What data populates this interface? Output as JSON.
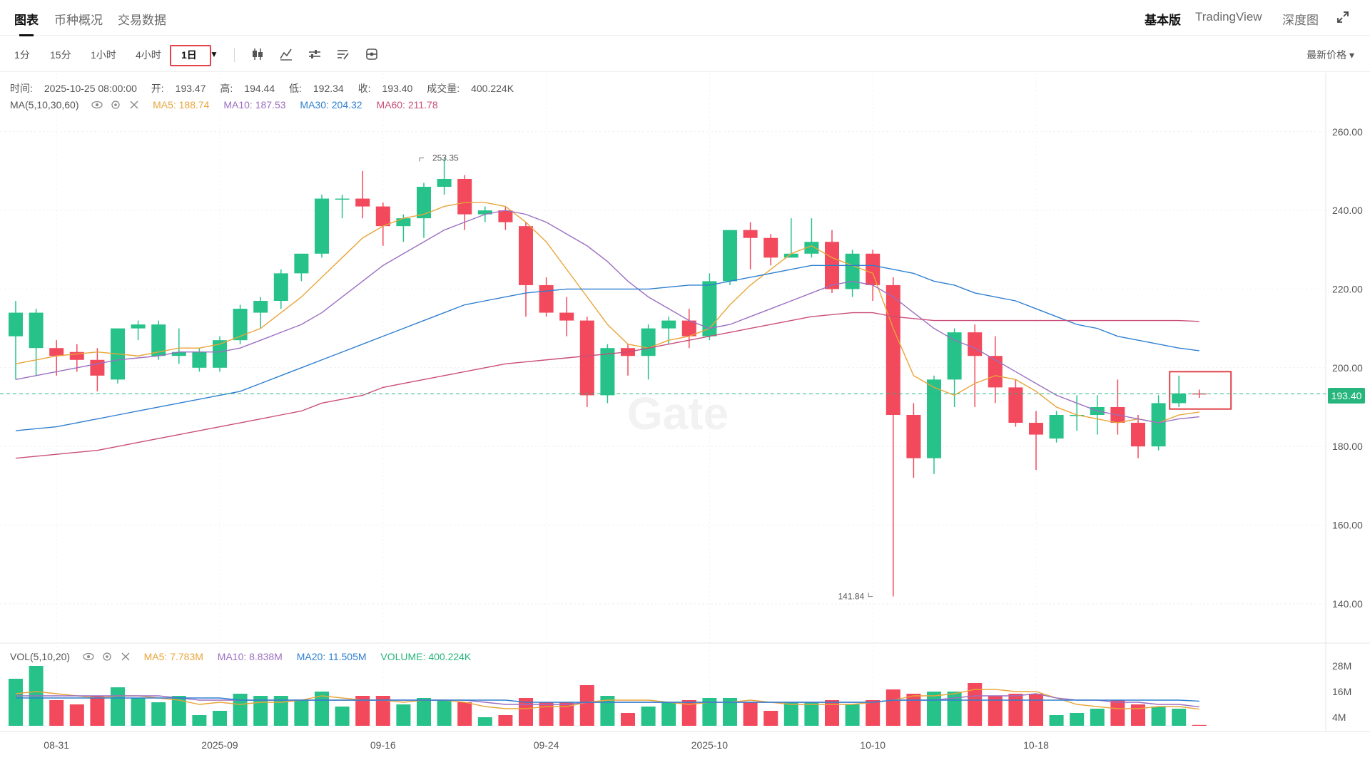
{
  "tabs": [
    {
      "label": "图表",
      "active": true
    },
    {
      "label": "币种概况",
      "active": false
    },
    {
      "label": "交易数据",
      "active": false
    }
  ],
  "right_tabs": [
    {
      "label": "基本版",
      "active": true
    },
    {
      "label": "TradingView",
      "active": false
    },
    {
      "label": "深度图",
      "active": false
    }
  ],
  "intervals": [
    "1分",
    "15分",
    "1小时",
    "4小时",
    "1日"
  ],
  "active_interval": "1日",
  "price_type": "最新价格",
  "ohlc": {
    "time_label": "时间:",
    "time": "2025-10-25 08:00:00",
    "open_label": "开:",
    "open": "193.47",
    "high_label": "高:",
    "high": "194.44",
    "low_label": "低:",
    "low": "192.34",
    "close_label": "收:",
    "close": "193.40",
    "volume_label": "成交量:",
    "volume": "400.224K"
  },
  "ma_legend": {
    "name": "MA(5,10,30,60)",
    "ma5": "MA5: 188.74",
    "ma10": "MA10: 187.53",
    "ma30": "MA30: 204.32",
    "ma60": "MA60: 211.78"
  },
  "vol_legend": {
    "name": "VOL(5,10,20)",
    "ma5": "MA5: 7.783M",
    "ma10": "MA10: 8.838M",
    "ma20": "MA20: 11.505M",
    "volume": "VOLUME: 400.224K"
  },
  "current_price": "193.40",
  "watermark": "Gate",
  "colors": {
    "up": "#26c28a",
    "down": "#f2495c",
    "ma5": "#e8a53a",
    "ma10": "#9b6fc1",
    "ma30": "#2f7fd0",
    "ma60": "#c94d7a",
    "current": "#26b57c"
  },
  "chart_data": {
    "type": "candlestick",
    "title": "",
    "price_range": [
      130,
      275
    ],
    "price_ticks": [
      "260.00",
      "240.00",
      "220.00",
      "200.00",
      "180.00",
      "160.00",
      "140.00"
    ],
    "price_tick_values": [
      260,
      240,
      220,
      200,
      180,
      160,
      140
    ],
    "volume_ticks": [
      "28M",
      "16M",
      "4M"
    ],
    "volume_tick_values": [
      28,
      16,
      4
    ],
    "volume_range": [
      0,
      32
    ],
    "date_labels": [
      {
        "index": 2,
        "label": "08-31"
      },
      {
        "index": 10,
        "label": "2025-09"
      },
      {
        "index": 18,
        "label": "09-16"
      },
      {
        "index": 26,
        "label": "09-24"
      },
      {
        "index": 34,
        "label": "2025-10"
      },
      {
        "index": 42,
        "label": "10-10"
      },
      {
        "index": 50,
        "label": "10-18"
      }
    ],
    "annotations": [
      {
        "index": 20,
        "label": "253.35",
        "value": 253.35
      },
      {
        "index": 42,
        "label": "141.84",
        "value": 141.84
      }
    ],
    "candles": [
      {
        "o": 208,
        "h": 217,
        "l": 197,
        "c": 214
      },
      {
        "o": 205,
        "h": 215,
        "l": 198,
        "c": 214
      },
      {
        "o": 205,
        "h": 207,
        "l": 198,
        "c": 203
      },
      {
        "o": 204,
        "h": 206,
        "l": 199,
        "c": 202
      },
      {
        "o": 202,
        "h": 205,
        "l": 194,
        "c": 198
      },
      {
        "o": 197,
        "h": 210,
        "l": 196,
        "c": 210
      },
      {
        "o": 210,
        "h": 212,
        "l": 207,
        "c": 211
      },
      {
        "o": 203,
        "h": 212,
        "l": 202,
        "c": 211
      },
      {
        "o": 203,
        "h": 210,
        "l": 201,
        "c": 204
      },
      {
        "o": 200,
        "h": 205,
        "l": 199,
        "c": 204
      },
      {
        "o": 200,
        "h": 208,
        "l": 199,
        "c": 207
      },
      {
        "o": 207,
        "h": 216,
        "l": 206,
        "c": 215
      },
      {
        "o": 214,
        "h": 218,
        "l": 210,
        "c": 217
      },
      {
        "o": 217,
        "h": 225,
        "l": 215,
        "c": 224
      },
      {
        "o": 224,
        "h": 229,
        "l": 222,
        "c": 229
      },
      {
        "o": 229,
        "h": 244,
        "l": 228,
        "c": 243
      },
      {
        "o": 243,
        "h": 244,
        "l": 238,
        "c": 243
      },
      {
        "o": 243,
        "h": 250,
        "l": 238,
        "c": 241
      },
      {
        "o": 241,
        "h": 242,
        "l": 231,
        "c": 236
      },
      {
        "o": 236,
        "h": 239,
        "l": 232,
        "c": 238
      },
      {
        "o": 238,
        "h": 247,
        "l": 233,
        "c": 246
      },
      {
        "o": 246,
        "h": 253.35,
        "l": 244,
        "c": 248
      },
      {
        "o": 248,
        "h": 249,
        "l": 235,
        "c": 239
      },
      {
        "o": 239,
        "h": 241,
        "l": 237,
        "c": 240
      },
      {
        "o": 240,
        "h": 241,
        "l": 235,
        "c": 237
      },
      {
        "o": 236,
        "h": 237,
        "l": 213,
        "c": 221
      },
      {
        "o": 221,
        "h": 223,
        "l": 213,
        "c": 214
      },
      {
        "o": 214,
        "h": 218,
        "l": 208,
        "c": 212
      },
      {
        "o": 212,
        "h": 213,
        "l": 190,
        "c": 193
      },
      {
        "o": 193,
        "h": 206,
        "l": 191,
        "c": 205
      },
      {
        "o": 205,
        "h": 206,
        "l": 198,
        "c": 203
      },
      {
        "o": 203,
        "h": 211,
        "l": 197,
        "c": 210
      },
      {
        "o": 210,
        "h": 213,
        "l": 206,
        "c": 212
      },
      {
        "o": 212,
        "h": 215,
        "l": 205,
        "c": 208
      },
      {
        "o": 208,
        "h": 224,
        "l": 207,
        "c": 222
      },
      {
        "o": 222,
        "h": 235,
        "l": 221,
        "c": 235
      },
      {
        "o": 235,
        "h": 237,
        "l": 225,
        "c": 233
      },
      {
        "o": 233,
        "h": 234,
        "l": 226,
        "c": 228
      },
      {
        "o": 228,
        "h": 238,
        "l": 228,
        "c": 229
      },
      {
        "o": 229,
        "h": 238,
        "l": 228,
        "c": 232
      },
      {
        "o": 232,
        "h": 235,
        "l": 219,
        "c": 220
      },
      {
        "o": 220,
        "h": 230,
        "l": 218,
        "c": 229
      },
      {
        "o": 229,
        "h": 230,
        "l": 217,
        "c": 221
      },
      {
        "o": 221,
        "h": 223,
        "l": 141.84,
        "c": 188
      },
      {
        "o": 188,
        "h": 191,
        "l": 172,
        "c": 177
      },
      {
        "o": 177,
        "h": 198,
        "l": 173,
        "c": 197
      },
      {
        "o": 197,
        "h": 210,
        "l": 190,
        "c": 209
      },
      {
        "o": 209,
        "h": 211,
        "l": 190,
        "c": 203
      },
      {
        "o": 203,
        "h": 208,
        "l": 191,
        "c": 195
      },
      {
        "o": 195,
        "h": 197,
        "l": 185,
        "c": 186
      },
      {
        "o": 186,
        "h": 189,
        "l": 174,
        "c": 183
      },
      {
        "o": 182,
        "h": 189,
        "l": 181,
        "c": 188
      },
      {
        "o": 188,
        "h": 193,
        "l": 184,
        "c": 188
      },
      {
        "o": 188,
        "h": 193,
        "l": 183,
        "c": 190
      },
      {
        "o": 190,
        "h": 197,
        "l": 183,
        "c": 186
      },
      {
        "o": 186,
        "h": 188,
        "l": 177,
        "c": 180
      },
      {
        "o": 180,
        "h": 193,
        "l": 179,
        "c": 191
      },
      {
        "o": 191,
        "h": 198,
        "l": 190,
        "c": 193.47
      },
      {
        "o": 193.47,
        "h": 194.44,
        "l": 192.34,
        "c": 193.4
      }
    ],
    "volumes": [
      22,
      28,
      12,
      10,
      14,
      18,
      13,
      11,
      14,
      5,
      7,
      15,
      14,
      14,
      12,
      16,
      9,
      14,
      14,
      10,
      13,
      12,
      11,
      4,
      5,
      13,
      11,
      11,
      19,
      14,
      6,
      9,
      11,
      12,
      13,
      13,
      11,
      7,
      11,
      11,
      12,
      10,
      12,
      17,
      15,
      16,
      16,
      20,
      14,
      15,
      15,
      5,
      6,
      8,
      12,
      10,
      9,
      8,
      0.4
    ],
    "ma5": [
      201,
      202,
      203,
      203.5,
      204,
      203.5,
      203,
      204,
      205,
      205,
      206,
      208,
      210,
      214,
      218,
      223,
      228,
      233,
      236,
      238,
      239,
      241,
      242,
      242,
      241,
      237,
      232,
      225,
      218,
      211,
      206,
      205,
      207,
      208,
      210,
      216,
      221,
      225,
      229,
      231,
      228,
      226,
      224,
      210,
      198,
      195,
      193,
      196,
      198,
      197,
      194,
      190,
      188,
      187,
      186,
      187,
      186,
      188,
      188.74
    ],
    "ma10": [
      197,
      198,
      199,
      200,
      201,
      202,
      202.5,
      203,
      204,
      204,
      204,
      205,
      207,
      209,
      211,
      214,
      218,
      222,
      226,
      229,
      232,
      235,
      237,
      239,
      240,
      239,
      237,
      234,
      231,
      227,
      222,
      218,
      215,
      212,
      210,
      211,
      213,
      215,
      217,
      219,
      221,
      222,
      221,
      218,
      214,
      210,
      207,
      205,
      202,
      199,
      196,
      193,
      191,
      189,
      188,
      187,
      186,
      187,
      187.53
    ],
    "ma30": [
      184,
      184.5,
      185,
      186,
      187,
      188,
      189,
      190,
      191,
      192,
      193,
      194,
      196,
      198,
      200,
      202,
      204,
      206,
      208,
      210,
      212,
      214,
      216,
      217,
      218,
      219,
      219.5,
      220,
      220,
      220,
      220,
      220,
      220.5,
      221,
      221,
      222,
      223,
      224,
      225,
      226,
      226,
      226,
      226,
      225,
      224,
      222,
      221,
      219,
      218,
      217,
      215,
      213,
      211,
      210,
      208,
      207,
      206,
      205,
      204.32
    ],
    "ma60": [
      177,
      177.5,
      178,
      178.5,
      179,
      180,
      181,
      182,
      183,
      184,
      185,
      186,
      187,
      188,
      189,
      191,
      192,
      193,
      195,
      196,
      197,
      198,
      199,
      200,
      201,
      201.5,
      202,
      202.5,
      203,
      203.5,
      204,
      205,
      206,
      207,
      208,
      209,
      210,
      211,
      212,
      213,
      213.5,
      214,
      214,
      213,
      212.5,
      212,
      212,
      212,
      212,
      212,
      212,
      212,
      212,
      212,
      212,
      212,
      212,
      212,
      211.78
    ],
    "vol_ma5": [
      15,
      16,
      15,
      14,
      13,
      14,
      14,
      13,
      12,
      10,
      11,
      10,
      11,
      11,
      12,
      14,
      13,
      12,
      12,
      11,
      12,
      12,
      11,
      9,
      8,
      8,
      9,
      9,
      11,
      12,
      12,
      12,
      11,
      10,
      11,
      11,
      12,
      11,
      10,
      10,
      10,
      10,
      11,
      12,
      14,
      14,
      15,
      17,
      17,
      16,
      16,
      13,
      10,
      9,
      8,
      8,
      9,
      9,
      7.783
    ],
    "vol_ma10": [
      14,
      14,
      14,
      14,
      14,
      14,
      14,
      14,
      13,
      12,
      12,
      12,
      12,
      12,
      12,
      12,
      12,
      12,
      12,
      12,
      12,
      12,
      12,
      11,
      10,
      10,
      10,
      10,
      11,
      11,
      11,
      11,
      11,
      11,
      11,
      11,
      11,
      11,
      11,
      11,
      11,
      11,
      11,
      12,
      12,
      12,
      13,
      14,
      14,
      14,
      15,
      13,
      12,
      12,
      11,
      11,
      10,
      10,
      8.838
    ],
    "vol_ma20": [
      13,
      13,
      13,
      13,
      13,
      13,
      13,
      13,
      13,
      13,
      13,
      12,
      12,
      12,
      12,
      12,
      12,
      12,
      12,
      12,
      12,
      12,
      12,
      12,
      12,
      11,
      11,
      11,
      11,
      11,
      11,
      11,
      11,
      11,
      11,
      11,
      11,
      11,
      11,
      11,
      11,
      11,
      11,
      12,
      12,
      12,
      12,
      12,
      12,
      12,
      12,
      12,
      12,
      12,
      12,
      12,
      12,
      12,
      11.505
    ]
  }
}
